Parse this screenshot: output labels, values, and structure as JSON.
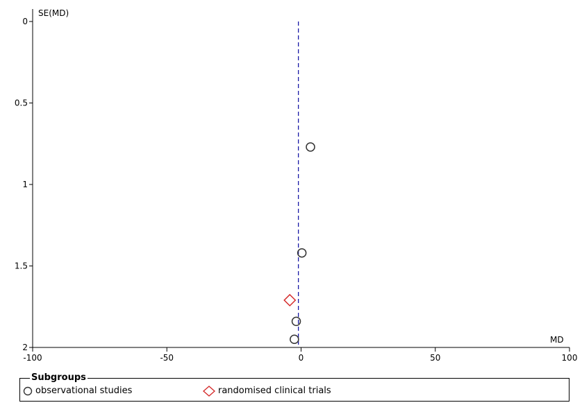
{
  "chart_data": {
    "type": "scatter",
    "title": "",
    "xlabel": "MD",
    "ylabel": "SE(MD)",
    "xlim": [
      -100,
      100
    ],
    "ylim": [
      0,
      2
    ],
    "y_inverted": true,
    "xticks": [
      -100,
      -50,
      0,
      50,
      100
    ],
    "xtick_labels": [
      "-100",
      "-50",
      "0",
      "50",
      "100"
    ],
    "yticks": [
      0,
      0.5,
      1,
      1.5,
      2
    ],
    "ytick_labels": [
      "0",
      "0.5",
      "1",
      "1.5",
      "2"
    ],
    "reference_line": {
      "x": -1,
      "style": "dashed",
      "color": "#1a1aa6"
    },
    "grid": false,
    "legend_title": "Subgroups",
    "legend_placement": "bottom",
    "series": [
      {
        "name": "observational studies",
        "marker": "circle",
        "color": "#333333",
        "points": [
          {
            "x": 3.5,
            "y": 0.77
          },
          {
            "x": 0.3,
            "y": 1.42
          },
          {
            "x": -1.8,
            "y": 1.84
          },
          {
            "x": -2.5,
            "y": 1.95
          }
        ]
      },
      {
        "name": "randomised clinical trials",
        "marker": "diamond",
        "color": "#d42a2a",
        "points": [
          {
            "x": -4.2,
            "y": 1.71
          }
        ]
      }
    ]
  }
}
